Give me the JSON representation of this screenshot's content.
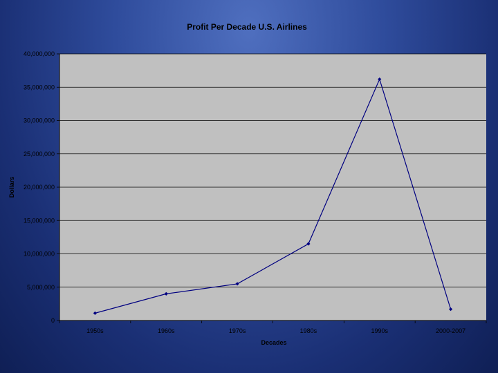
{
  "chart_data": {
    "type": "line",
    "title": "Profit Per Decade U.S. Airlines",
    "xlabel": "Decades",
    "ylabel": "Dollars",
    "categories": [
      "1950s",
      "1960s",
      "1970s",
      "1980s",
      "1990s",
      "2000-2007"
    ],
    "series": [
      {
        "values": [
          1100000,
          4000000,
          5500000,
          11500000,
          36200000,
          1700000
        ]
      }
    ],
    "ylim": [
      0,
      40000000
    ],
    "yticks": [
      0,
      5000000,
      10000000,
      15000000,
      20000000,
      25000000,
      30000000,
      35000000,
      40000000
    ],
    "ytick_labels": [
      "0",
      "5,000,000",
      "10,000,000",
      "15,000,000",
      "20,000,000",
      "25,000,000",
      "30,000,000",
      "35,000,000",
      "40,000,000"
    ],
    "grid": true,
    "legend": "none",
    "colors": {
      "plot_background": "#c0c0c0",
      "line": "#000080",
      "gridline": "#000000"
    }
  }
}
